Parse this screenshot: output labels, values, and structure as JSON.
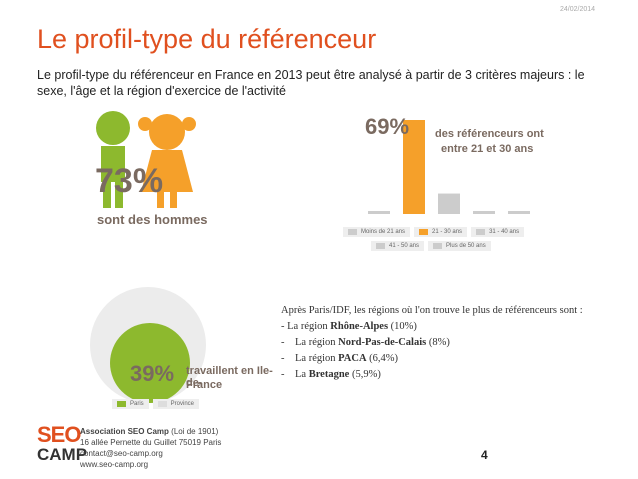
{
  "date": "24/02/2014",
  "title": "Le profil-type du référenceur",
  "subtitle": "Le profil-type du référenceur en France en 2013 peut être analysé à partir de 3 critères majeurs : le sexe, l'âge et la région d'exercice de l'activité",
  "gender": {
    "percent": "73%",
    "caption": "sont des hommes",
    "value": 73
  },
  "age": {
    "highlight": "69%",
    "highlight_caption_1": "des référenceurs ont",
    "highlight_caption_2": "entre 21 et 30 ans",
    "legend": [
      "Moins de 21 ans",
      "21 - 30 ans",
      "31 - 40 ans",
      "41 - 50 ans",
      "Plus de 50 ans"
    ]
  },
  "region": {
    "percent": "39%",
    "caption_1": "travaillent en Ile-de-",
    "caption_2": "France",
    "legend": [
      "Paris",
      "Province"
    ]
  },
  "regions_text": {
    "intro": "Après Paris/IDF, les régions où l'on trouve le plus de référenceurs sont :",
    "items": [
      {
        "prefix": "- La région ",
        "name": "Rhône-Alpes",
        "value": "(10%)"
      },
      {
        "prefix": "-    La région ",
        "name": "Nord-Pas-de-Calais",
        "value": "(8%)"
      },
      {
        "prefix": "-    La région ",
        "name": "PACA",
        "value": "(6,4%)"
      },
      {
        "prefix": "-    La ",
        "name": "Bretagne",
        "value": "(5,9%)"
      }
    ]
  },
  "footer": {
    "org": "Association SEO Camp",
    "org_suffix": "(Loi de 1901)",
    "address": "16 allée Pernette du Guillet 75019 Paris",
    "email": "contact@seo-camp.org",
    "web": "www.seo-camp.org",
    "logo_seo": "SEO",
    "logo_camp": "CAMP"
  },
  "page_number": "4",
  "chart_data": [
    {
      "type": "bar",
      "categories": [
        "Moins de 21 ans",
        "21 - 30 ans",
        "31 - 40 ans",
        "41 - 50 ans",
        "Plus de 50 ans"
      ],
      "values": [
        2,
        69,
        15,
        2,
        2
      ],
      "colors": [
        "#cccccc",
        "#f5a02a",
        "#cccccc",
        "#cccccc",
        "#cccccc"
      ]
    },
    {
      "type": "pie",
      "categories": [
        "Paris",
        "Province"
      ],
      "values": [
        39,
        61
      ],
      "colors": [
        "#8db92e",
        "#e9e9e9"
      ]
    }
  ],
  "colors": {
    "accent": "#e0501f",
    "orange": "#f5a02a",
    "green": "#8db92e",
    "boy": "#8db92e",
    "girl": "#f5a02a"
  }
}
